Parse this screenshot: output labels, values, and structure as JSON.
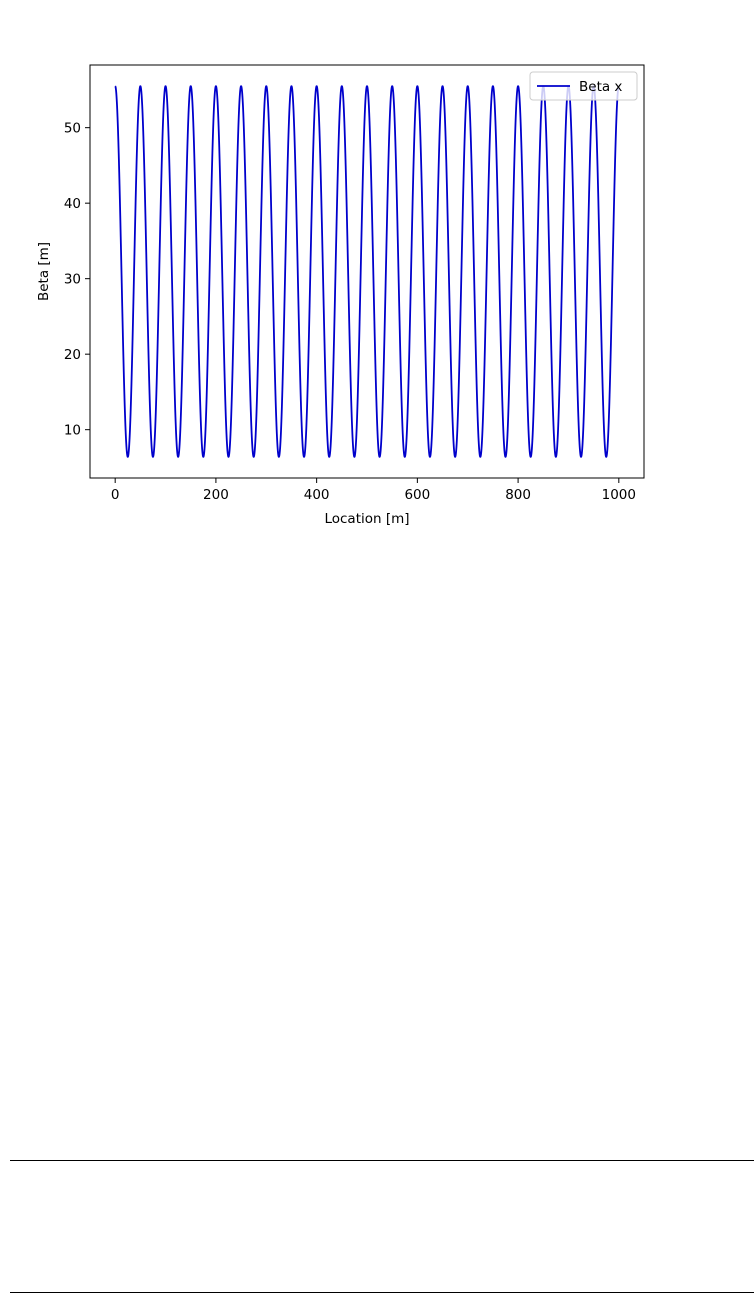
{
  "chart_data": {
    "type": "line",
    "title": "",
    "xlabel": "Location [m]",
    "ylabel": "Beta [m]",
    "xlim": [
      -50,
      1050
    ],
    "ylim": [
      3.6,
      58.3
    ],
    "xticks": [
      0,
      200,
      400,
      600,
      800,
      1000
    ],
    "yticks": [
      10,
      20,
      30,
      40,
      50
    ],
    "grid": false,
    "legend_position": "top-right",
    "series": [
      {
        "name": "Beta x",
        "color": "#0000cc",
        "description_of_shape": "periodic FODO beta function",
        "x_start": 0,
        "x_end": 1000,
        "period": 50,
        "max": 55.5,
        "min": 6.4,
        "first_min_at": 25
      }
    ]
  }
}
